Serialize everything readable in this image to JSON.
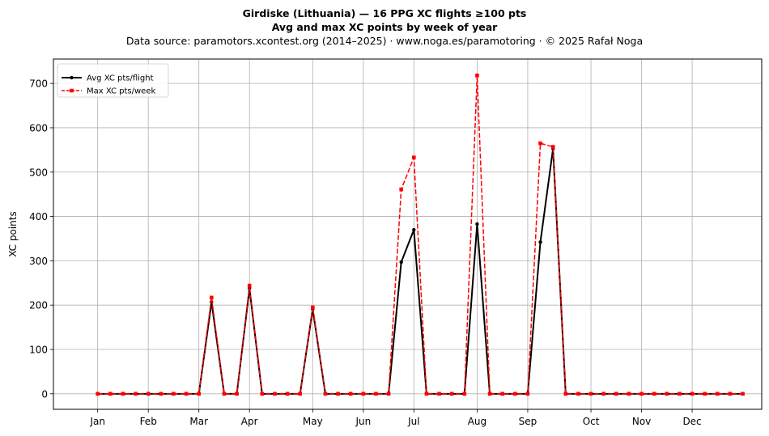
{
  "header": {
    "title": "Girdiske (Lithuania)  —  16 PPG XC flights ≥100 pts",
    "subtitle": "Avg and max XC points by week of year",
    "source": "Data source: paramotors.xcontest.org (2014–2025)  ·  www.noga.es/paramotoring  ·  © 2025 Rafał Noga"
  },
  "chart_data": {
    "type": "line",
    "title": "Girdiske (Lithuania)  —  16 PPG XC flights ≥100 pts",
    "subtitle": "Avg and max XC points by week of year",
    "xlabel": "",
    "ylabel": "XC points",
    "ylim": [
      -35,
      755
    ],
    "xlim": [
      -2.5,
      53.5
    ],
    "grid": true,
    "legend": "top-left",
    "x_ticks": [
      {
        "label": "Jan",
        "week": 1
      },
      {
        "label": "Feb",
        "week": 5
      },
      {
        "label": "Mar",
        "week": 9
      },
      {
        "label": "Apr",
        "week": 13
      },
      {
        "label": "May",
        "week": 18
      },
      {
        "label": "Jun",
        "week": 22
      },
      {
        "label": "Jul",
        "week": 26
      },
      {
        "label": "Aug",
        "week": 31
      },
      {
        "label": "Sep",
        "week": 35
      },
      {
        "label": "Oct",
        "week": 40
      },
      {
        "label": "Nov",
        "week": 44
      },
      {
        "label": "Dec",
        "week": 48
      }
    ],
    "y_ticks": [
      0,
      100,
      200,
      300,
      400,
      500,
      600,
      700
    ],
    "x": [
      1,
      2,
      3,
      4,
      5,
      6,
      7,
      8,
      9,
      10,
      11,
      12,
      13,
      14,
      15,
      16,
      17,
      18,
      19,
      20,
      21,
      22,
      23,
      24,
      25,
      26,
      27,
      28,
      29,
      30,
      31,
      32,
      33,
      34,
      35,
      36,
      37,
      38,
      39,
      40,
      41,
      42,
      43,
      44,
      45,
      46,
      47,
      48,
      49,
      50,
      51,
      52
    ],
    "series": [
      {
        "name": "Avg XC pts/flight",
        "color": "#000000",
        "style": "solid",
        "marker": "circle",
        "values": [
          0,
          0,
          0,
          0,
          0,
          0,
          0,
          0,
          0,
          207,
          0,
          0,
          238,
          0,
          0,
          0,
          0,
          191,
          0,
          0,
          0,
          0,
          0,
          0,
          297,
          370,
          0,
          0,
          0,
          0,
          383,
          0,
          0,
          0,
          0,
          342,
          553,
          0,
          0,
          0,
          0,
          0,
          0,
          0,
          0,
          0,
          0,
          0,
          0,
          0,
          0,
          0
        ]
      },
      {
        "name": "Max XC pts/week",
        "color": "#ff0000",
        "style": "dashed",
        "marker": "square",
        "values": [
          0,
          0,
          0,
          0,
          0,
          0,
          0,
          0,
          0,
          217,
          0,
          0,
          244,
          0,
          0,
          0,
          0,
          195,
          0,
          0,
          0,
          0,
          0,
          0,
          461,
          533,
          0,
          0,
          0,
          0,
          718,
          0,
          0,
          0,
          0,
          565,
          557,
          0,
          0,
          0,
          0,
          0,
          0,
          0,
          0,
          0,
          0,
          0,
          0,
          0,
          0,
          0
        ]
      }
    ]
  }
}
